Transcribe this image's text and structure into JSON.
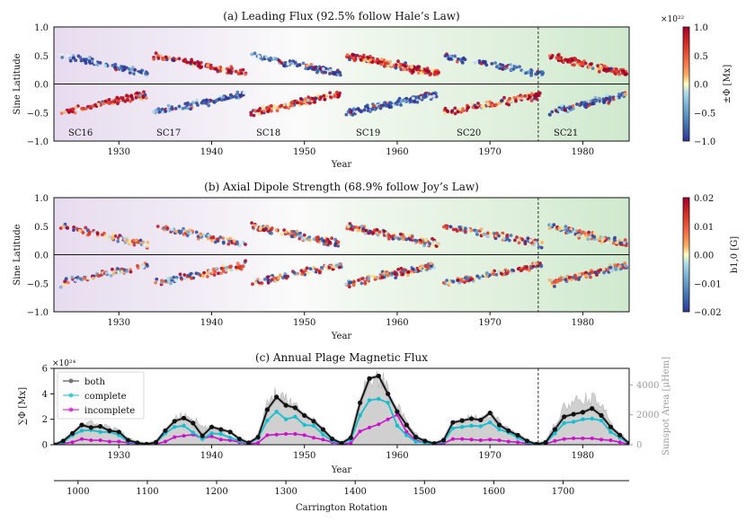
{
  "chart_data": [
    {
      "id": "a",
      "type": "scatter",
      "title": "(a) Leading Flux (92.5% follow Hale’s Law)",
      "xlabel": "Year",
      "ylabel": "Sine Latitude",
      "xlim": [
        1923,
        1985
      ],
      "ylim": [
        -1.0,
        1.0
      ],
      "xticks": [
        1930,
        1940,
        1950,
        1960,
        1970,
        1980
      ],
      "yticks": [
        -1.0,
        -0.5,
        0.0,
        0.5,
        1.0
      ],
      "ytick_labels": [
        "−1.0",
        "−0.5",
        "0.0",
        "0.5",
        "1.0"
      ],
      "colorbar": {
        "label": "±Φ [Mx]",
        "exponent": "×10²²",
        "ticks": [
          "1.0",
          "0.5",
          "0.0",
          "−0.5",
          "−1.0"
        ],
        "range": [
          -1.0,
          1.0
        ]
      },
      "cycle_labels": [
        "SC16",
        "SC17",
        "SC18",
        "SC19",
        "SC20",
        "SC21"
      ],
      "cycles": [
        {
          "name": "SC16",
          "start": 1923.5,
          "end": 1933.5,
          "north_sign": -1,
          "south_sign": 1,
          "count": 80
        },
        {
          "name": "SC17",
          "start": 1933.5,
          "end": 1944.0,
          "north_sign": 1,
          "south_sign": -1,
          "count": 90
        },
        {
          "name": "SC18",
          "start": 1944.0,
          "end": 1954.3,
          "north_sign": -1,
          "south_sign": 1,
          "count": 110
        },
        {
          "name": "SC19",
          "start": 1954.3,
          "end": 1964.8,
          "north_sign": 1,
          "south_sign": -1,
          "count": 140
        },
        {
          "name": "SC20",
          "start": 1964.8,
          "end": 1976.2,
          "north_sign": -1,
          "south_sign": 1,
          "count": 100
        },
        {
          "name": "SC21",
          "start": 1976.2,
          "end": 1985.0,
          "north_sign": 1,
          "south_sign": -1,
          "count": 110
        }
      ],
      "divider_year": 1975.2
    },
    {
      "id": "b",
      "type": "scatter",
      "title": "(b) Axial Dipole Strength (68.9% follow Joy’s Law)",
      "xlabel": "Year",
      "ylabel": "Sine Latitude",
      "xlim": [
        1923,
        1985
      ],
      "ylim": [
        -1.0,
        1.0
      ],
      "xticks": [
        1930,
        1940,
        1950,
        1960,
        1970,
        1980
      ],
      "yticks": [
        -1.0,
        -0.5,
        0.0,
        0.5,
        1.0
      ],
      "ytick_labels": [
        "−1.0",
        "−0.5",
        "0.0",
        "0.5",
        "1.0"
      ],
      "colorbar": {
        "label": "b1,0 [G]",
        "ticks": [
          "0.02",
          "0.01",
          "0.00",
          "−0.01",
          "−0.02"
        ],
        "range": [
          -0.02,
          0.02
        ]
      },
      "joy_fraction": 0.689,
      "divider_year": 1975.2
    },
    {
      "id": "c",
      "type": "line",
      "title": "(c) Annual Plage Magnetic Flux",
      "xlabel": "Year",
      "ylabel": "∑Φ [Mx]",
      "y_exponent": "×10²⁴",
      "xlim": [
        1923,
        1985
      ],
      "ylim": [
        0,
        6
      ],
      "xticks": [
        1930,
        1940,
        1950,
        1960,
        1970,
        1980
      ],
      "yticks": [
        0,
        2,
        4,
        6
      ],
      "y2label": "Sunspot Area [μHem]",
      "y2lim": [
        0,
        5100
      ],
      "y2ticks": [
        0,
        2000,
        4000
      ],
      "legend": [
        "both",
        "complete",
        "incomplete"
      ],
      "legend_position": "upper-left",
      "series": [
        {
          "name": "both",
          "color": "#111111",
          "x": [
            1923,
            1924,
            1925,
            1926,
            1927,
            1928,
            1929,
            1930,
            1931,
            1932,
            1933,
            1934,
            1935,
            1936,
            1937,
            1938,
            1939,
            1940,
            1941,
            1942,
            1943,
            1944,
            1945,
            1946,
            1947,
            1948,
            1949,
            1950,
            1951,
            1952,
            1953,
            1954,
            1955,
            1956,
            1957,
            1958,
            1959,
            1960,
            1961,
            1962,
            1963,
            1964,
            1965,
            1966,
            1967,
            1968,
            1969,
            1970,
            1971,
            1972,
            1973,
            1974,
            1975,
            1976,
            1977,
            1978,
            1979,
            1980,
            1981,
            1982,
            1983,
            1984,
            1985
          ],
          "values": [
            0.0,
            0.3,
            0.9,
            1.55,
            1.35,
            1.45,
            1.1,
            1.0,
            0.35,
            0.15,
            0.05,
            0.2,
            1.1,
            1.85,
            2.1,
            1.7,
            0.7,
            1.4,
            1.2,
            1.0,
            0.45,
            0.15,
            0.6,
            2.75,
            3.75,
            3.1,
            2.9,
            2.3,
            1.85,
            1.2,
            0.45,
            0.12,
            0.55,
            3.3,
            5.2,
            5.4,
            4.0,
            2.6,
            1.55,
            0.6,
            0.3,
            0.1,
            0.35,
            1.75,
            1.9,
            2.05,
            1.95,
            2.5,
            1.55,
            1.1,
            0.75,
            0.3,
            0.05,
            0.18,
            1.2,
            2.2,
            2.4,
            2.55,
            2.85,
            2.3,
            1.4,
            0.75,
            0.1
          ]
        },
        {
          "name": "complete",
          "color": "#17becf",
          "x": [
            1923,
            1924,
            1925,
            1926,
            1927,
            1928,
            1929,
            1930,
            1931,
            1932,
            1933,
            1934,
            1935,
            1936,
            1937,
            1938,
            1939,
            1940,
            1941,
            1942,
            1943,
            1944,
            1945,
            1946,
            1947,
            1948,
            1949,
            1950,
            1951,
            1952,
            1953,
            1954,
            1955,
            1956,
            1957,
            1958,
            1959,
            1960,
            1961,
            1962,
            1963,
            1964,
            1965,
            1966,
            1967,
            1968,
            1969,
            1970,
            1971,
            1972,
            1973,
            1974,
            1975,
            1976,
            1977,
            1978,
            1979,
            1980,
            1981,
            1982,
            1983,
            1984,
            1985
          ],
          "values": [
            0.0,
            0.2,
            0.75,
            1.1,
            1.15,
            1.0,
            1.0,
            0.75,
            0.25,
            0.12,
            0.05,
            0.15,
            0.9,
            1.4,
            1.5,
            0.95,
            0.45,
            0.9,
            0.85,
            0.55,
            0.3,
            0.1,
            0.5,
            1.9,
            2.6,
            2.0,
            2.2,
            1.55,
            1.5,
            0.8,
            0.3,
            0.1,
            0.4,
            2.3,
            3.5,
            3.6,
            3.3,
            1.5,
            0.75,
            0.25,
            0.15,
            0.08,
            0.25,
            1.3,
            1.4,
            1.5,
            1.45,
            1.75,
            1.2,
            0.95,
            0.55,
            0.2,
            0.03,
            0.12,
            0.9,
            1.7,
            1.8,
            2.0,
            2.05,
            1.9,
            1.0,
            0.55,
            0.08
          ]
        },
        {
          "name": "incomplete",
          "color": "#cc11cc",
          "x": [
            1923,
            1924,
            1925,
            1926,
            1927,
            1928,
            1929,
            1930,
            1931,
            1932,
            1933,
            1934,
            1935,
            1936,
            1937,
            1938,
            1939,
            1940,
            1941,
            1942,
            1943,
            1944,
            1945,
            1946,
            1947,
            1948,
            1949,
            1950,
            1951,
            1952,
            1953,
            1954,
            1955,
            1956,
            1957,
            1958,
            1959,
            1960,
            1961,
            1962,
            1963,
            1964,
            1965,
            1966,
            1967,
            1968,
            1969,
            1970,
            1971,
            1972,
            1973,
            1974,
            1975,
            1976,
            1977,
            1978,
            1979,
            1980,
            1981,
            1982,
            1983,
            1984,
            1985
          ],
          "values": [
            0.0,
            0.1,
            0.2,
            0.45,
            0.35,
            0.35,
            0.25,
            0.25,
            0.15,
            0.08,
            0.02,
            0.05,
            0.25,
            0.6,
            0.7,
            0.8,
            0.5,
            0.65,
            0.4,
            0.35,
            0.2,
            0.05,
            0.15,
            0.75,
            0.8,
            0.85,
            0.85,
            0.75,
            0.55,
            0.4,
            0.2,
            0.03,
            0.15,
            1.05,
            1.35,
            1.6,
            2.0,
            2.35,
            1.0,
            0.35,
            0.15,
            0.03,
            0.1,
            0.45,
            0.45,
            0.4,
            0.35,
            0.4,
            0.35,
            0.25,
            0.2,
            0.1,
            0.02,
            0.06,
            0.3,
            0.45,
            0.5,
            0.5,
            0.5,
            0.4,
            0.35,
            0.2,
            0.03
          ]
        },
        {
          "name": "sunspot-area",
          "color": "#bdbdbd",
          "axis": "y2",
          "x": [
            1923,
            1924,
            1925,
            1926,
            1927,
            1928,
            1929,
            1930,
            1931,
            1932,
            1933,
            1934,
            1935,
            1936,
            1937,
            1938,
            1939,
            1940,
            1941,
            1942,
            1943,
            1944,
            1945,
            1946,
            1947,
            1948,
            1949,
            1950,
            1951,
            1952,
            1953,
            1954,
            1955,
            1956,
            1957,
            1958,
            1959,
            1960,
            1961,
            1962,
            1963,
            1964,
            1965,
            1966,
            1967,
            1968,
            1969,
            1970,
            1971,
            1972,
            1973,
            1974,
            1975,
            1976,
            1977,
            1978,
            1979,
            1980,
            1981,
            1982,
            1983,
            1984,
            1985
          ],
          "values": [
            50,
            150,
            700,
            1300,
            1400,
            1200,
            1250,
            900,
            450,
            200,
            80,
            150,
            700,
            1600,
            2000,
            1700,
            1100,
            1100,
            900,
            600,
            300,
            100,
            500,
            2600,
            3500,
            3000,
            2700,
            1900,
            1600,
            1000,
            400,
            100,
            500,
            3200,
            4300,
            4300,
            3800,
            2500,
            1400,
            700,
            300,
            80,
            300,
            1200,
            1600,
            1800,
            1700,
            2000,
            1500,
            1000,
            700,
            300,
            50,
            150,
            1400,
            2400,
            2700,
            2900,
            3000,
            2500,
            1500,
            800,
            100
          ]
        }
      ],
      "divider_year": 1975.2
    }
  ],
  "secondary_axis": {
    "label": "Carrington Rotation",
    "ticks": [
      1000,
      1100,
      1200,
      1300,
      1400,
      1500,
      1600,
      1700
    ]
  }
}
